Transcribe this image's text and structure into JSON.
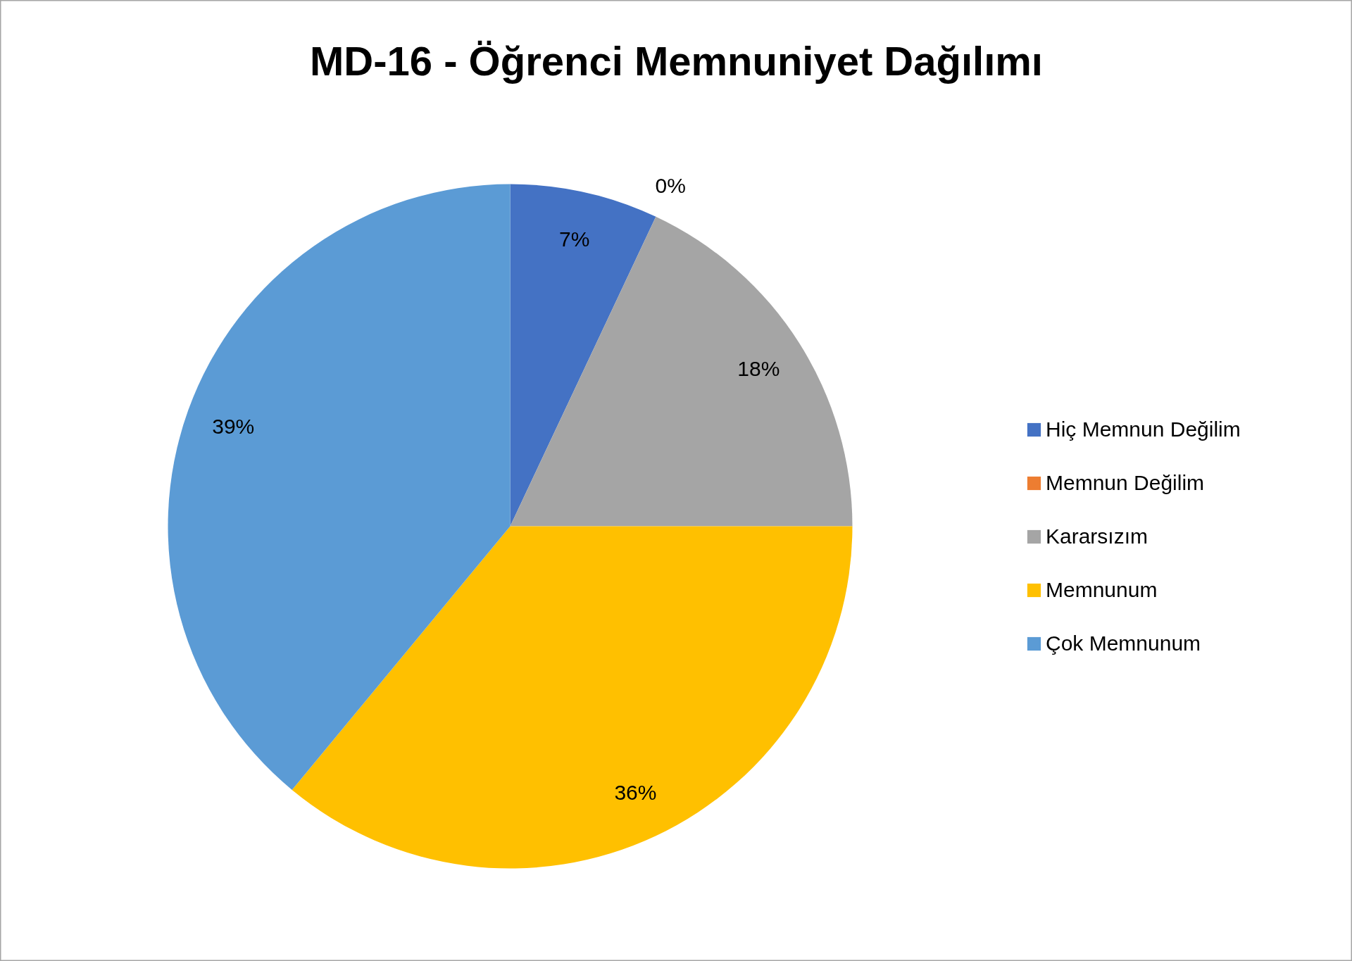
{
  "chart_data": {
    "type": "pie",
    "title": "MD-16 - Öğrenci Memnuniyet Dağılımı",
    "categories": [
      "Hiç Memnun Değilim",
      "Memnun Değilim",
      "Kararsızım",
      "Memnunum",
      "Çok Memnunum"
    ],
    "values": [
      7,
      0,
      18,
      36,
      39
    ],
    "colors": [
      "#4472c4",
      "#ed7d31",
      "#a5a5a5",
      "#ffc000",
      "#5b9bd5"
    ],
    "value_labels": [
      "7%",
      "0%",
      "18%",
      "36%",
      "39%"
    ],
    "legend": "right"
  }
}
